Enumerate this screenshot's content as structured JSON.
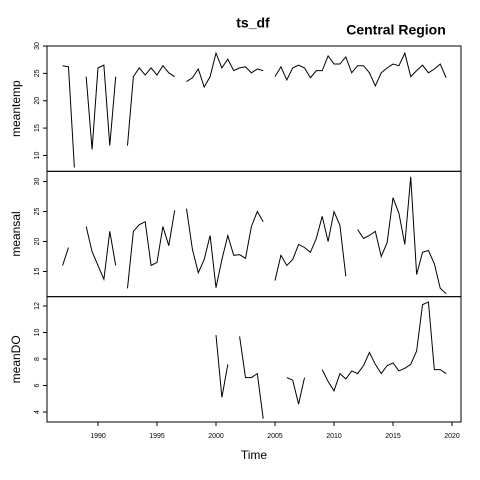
{
  "chart_data": {
    "type": "line",
    "title": "ts_df",
    "subtitle": "Central Region",
    "xlabel": "Time",
    "color": "#000000",
    "x": [
      1987,
      1987.5,
      1988,
      1988.5,
      1989,
      1989.5,
      1990,
      1990.5,
      1991,
      1991.5,
      1992,
      1992.5,
      1993,
      1993.5,
      1994,
      1994.5,
      1995,
      1995.5,
      1996,
      1996.5,
      1997,
      1997.5,
      1998,
      1998.5,
      1999,
      1999.5,
      2000,
      2000.5,
      2001,
      2001.5,
      2002,
      2002.5,
      2003,
      2003.5,
      2004,
      2004.5,
      2005,
      2005.5,
      2006,
      2006.5,
      2007,
      2007.5,
      2008,
      2008.5,
      2009,
      2009.5,
      2010,
      2010.5,
      2011,
      2011.5,
      2012,
      2012.5,
      2013,
      2013.5,
      2014,
      2014.5,
      2015,
      2015.5,
      2016,
      2016.5,
      2017,
      2017.5,
      2018,
      2018.5,
      2019,
      2019.5
    ],
    "xlim": [
      1985.68,
      2020.76
    ],
    "xticks": [
      1990,
      1995,
      2000,
      2005,
      2010,
      2015,
      2020
    ],
    "panels": [
      {
        "ylabel": "meantemp",
        "ylim": [
          7.1,
          30
        ],
        "yticks": [
          10,
          15,
          20,
          25,
          30
        ],
        "values": [
          26.4,
          26.2,
          7.8,
          null,
          24.4,
          11.1,
          26,
          26.5,
          11.8,
          24.4,
          null,
          11.8,
          24.4,
          26,
          24.7,
          26,
          24.7,
          26.4,
          25.1,
          24.4,
          null,
          23.5,
          24.2,
          25.8,
          22.5,
          24.4,
          28.7,
          26,
          27.6,
          25.5,
          26,
          26.2,
          25.1,
          25.8,
          25.5,
          null,
          24.4,
          26.2,
          23.8,
          26,
          26.5,
          26,
          24.2,
          25.5,
          25.5,
          28.2,
          26.7,
          26.7,
          28,
          25.1,
          26.4,
          26.4,
          25.1,
          22.7,
          25.1,
          26,
          26.7,
          26.4,
          28.7,
          24.4,
          25.5,
          26.5,
          25.1,
          25.8,
          26.7,
          24.2
        ]
      },
      {
        "ylabel": "meansal",
        "ylim": [
          10.8,
          31.7
        ],
        "yticks": [
          15,
          20,
          25,
          30
        ],
        "values": [
          16,
          19,
          null,
          null,
          22.5,
          18.3,
          16,
          13.7,
          21.7,
          16,
          null,
          12.2,
          21.7,
          22.8,
          23.3,
          16,
          16.5,
          22.5,
          19.3,
          25.2,
          null,
          25.5,
          18.7,
          14.8,
          17,
          21,
          12.3,
          17,
          21,
          17.7,
          17.8,
          17.2,
          22.5,
          25,
          23.3,
          null,
          13.5,
          17.7,
          16,
          17,
          19.5,
          19,
          18.2,
          20.5,
          24.2,
          20,
          25,
          22.7,
          14.2,
          null,
          22,
          20.5,
          21,
          21.7,
          17.5,
          19.8,
          27.3,
          24.7,
          19.5,
          30.8,
          14.5,
          18.2,
          18.5,
          16.3,
          12.2,
          11.3
        ]
      },
      {
        "ylabel": "meanDO",
        "ylim": [
          3.25,
          12.7
        ],
        "yticks": [
          4,
          6,
          8,
          10,
          12
        ],
        "values": [
          null,
          null,
          null,
          null,
          null,
          null,
          null,
          null,
          null,
          null,
          null,
          null,
          null,
          null,
          null,
          null,
          null,
          null,
          null,
          null,
          null,
          null,
          null,
          null,
          null,
          null,
          9.8,
          5.1,
          7.6,
          null,
          9.7,
          6.6,
          6.6,
          6.9,
          3.5,
          null,
          null,
          null,
          6.6,
          6.4,
          4.6,
          6.6,
          null,
          null,
          7.2,
          6.3,
          5.6,
          6.9,
          6.5,
          7.1,
          6.9,
          7.5,
          8.5,
          7.6,
          6.9,
          7.5,
          7.7,
          7.1,
          7.3,
          7.6,
          8.6,
          12.1,
          12.3,
          7.2,
          7.2,
          6.9
        ]
      }
    ]
  }
}
